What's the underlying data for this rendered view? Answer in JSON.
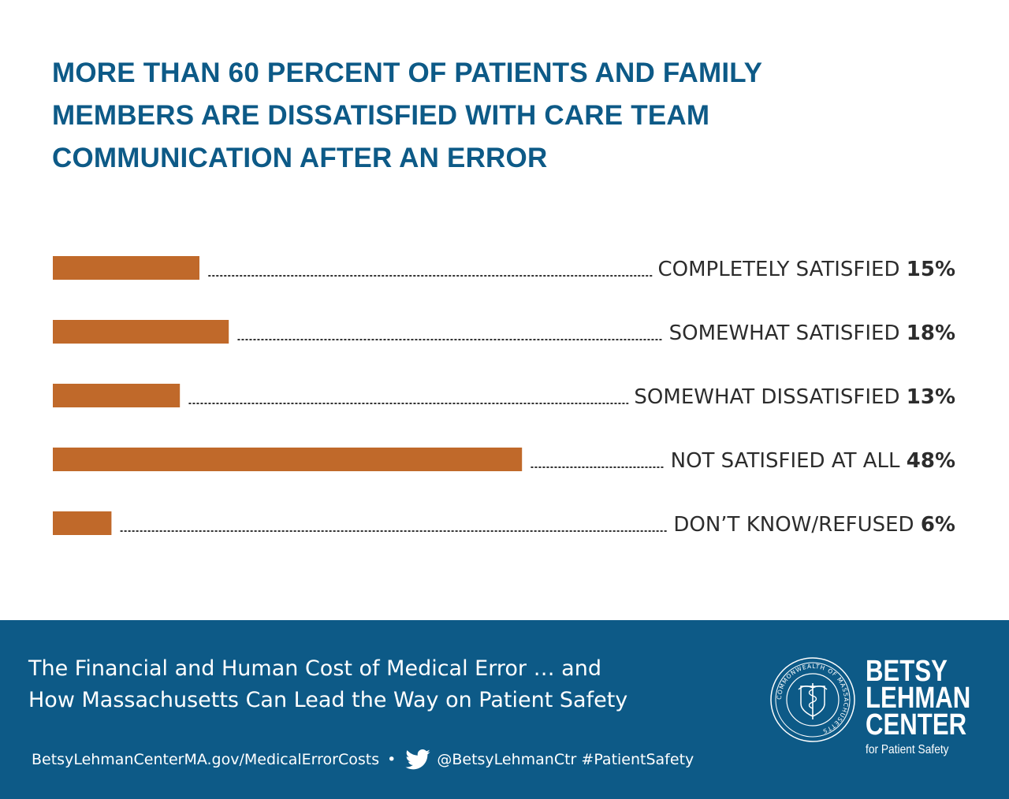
{
  "title": "MORE THAN 60 PERCENT OF PATIENTS AND FAMILY MEMBERS ARE DISSATISFIED WITH CARE TEAM COMMUNICATION AFTER AN ERROR",
  "chart_data": {
    "type": "bar",
    "orientation": "horizontal",
    "categories": [
      "COMPLETELY SATISFIED",
      "SOMEWHAT SATISFIED",
      "SOMEWHAT DISSATISFIED",
      "NOT SATISFIED AT ALL",
      "DON’T KNOW/REFUSED"
    ],
    "values": [
      15,
      18,
      13,
      48,
      6
    ],
    "value_labels": [
      "15%",
      "18%",
      "13%",
      "48%",
      "6%"
    ],
    "bar_color": "#c0692a",
    "grid": false
  },
  "footer": {
    "title_line1": "The Financial and Human Cost of Medical Error … and",
    "title_line2": "How Massachusetts Can Lead the Way on Patient Safety",
    "url": "BetsyLehmanCenterMA.gov/MedicalErrorCosts",
    "separator": "•",
    "social": "@BetsyLehmanCtr #PatientSafety",
    "brand_line1": "BETSY",
    "brand_line2": "LEHMAN",
    "brand_line3": "CENTER",
    "brand_tagline": "for Patient Safety",
    "seal_text": "COMMONWEALTH OF MASSACHUSETTS",
    "background": "#0d5a87"
  }
}
